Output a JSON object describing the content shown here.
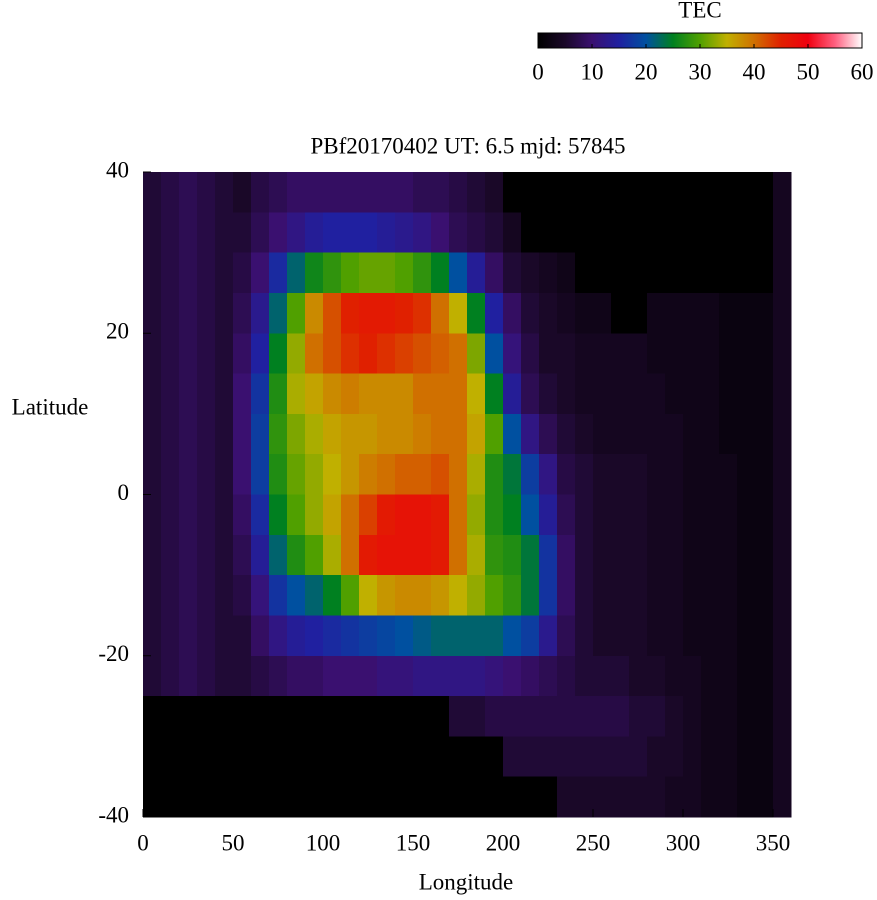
{
  "chart_data": {
    "type": "heatmap",
    "title": "PBf20170402  UT: 6.5  mjd: 57845",
    "x_label": "Longitude",
    "y_label": "Latitude",
    "colorbar_label": "TEC",
    "x": [
      5,
      15,
      25,
      35,
      45,
      55,
      65,
      75,
      85,
      95,
      105,
      115,
      125,
      135,
      145,
      155,
      165,
      175,
      185,
      195,
      205,
      215,
      225,
      235,
      245,
      255,
      265,
      275,
      285,
      295,
      305,
      315,
      325,
      335,
      345,
      355
    ],
    "y": [
      37.5,
      32.5,
      27.5,
      22.5,
      17.5,
      12.5,
      7.5,
      2.5,
      -2.5,
      -7.5,
      -12.5,
      -17.5,
      -22.5,
      -27.5,
      -32.5,
      -37.5
    ],
    "values": [
      [
        6,
        7,
        8,
        7,
        6,
        5,
        7,
        8,
        9,
        9,
        9,
        9,
        9,
        9,
        9,
        8,
        8,
        7,
        6,
        5,
        0,
        0,
        0,
        0,
        0,
        0,
        0,
        0,
        0,
        0,
        0,
        0,
        0,
        0,
        0,
        4
      ],
      [
        6,
        7,
        8,
        7,
        6,
        6,
        8,
        10,
        12,
        14,
        15,
        15,
        15,
        14,
        13,
        12,
        10,
        8,
        7,
        6,
        4,
        0,
        0,
        0,
        0,
        0,
        0,
        0,
        0,
        0,
        0,
        0,
        0,
        0,
        0,
        4
      ],
      [
        6,
        7,
        8,
        7,
        6,
        7,
        10,
        16,
        22,
        26,
        28,
        30,
        31,
        31,
        30,
        28,
        25,
        20,
        14,
        9,
        6,
        5,
        4,
        3,
        0,
        0,
        0,
        0,
        0,
        0,
        0,
        0,
        0,
        0,
        0,
        4
      ],
      [
        6,
        7,
        8,
        7,
        6,
        8,
        13,
        22,
        30,
        38,
        42,
        45,
        46,
        46,
        45,
        44,
        40,
        35,
        25,
        15,
        9,
        6,
        5,
        4,
        3,
        3,
        0,
        0,
        3,
        3,
        3,
        3,
        2,
        2,
        2,
        4
      ],
      [
        6,
        7,
        8,
        7,
        6,
        9,
        15,
        25,
        33,
        40,
        42,
        44,
        45,
        44,
        43,
        42,
        41,
        40,
        32,
        20,
        11,
        7,
        5,
        5,
        4,
        4,
        4,
        4,
        3,
        3,
        3,
        3,
        2,
        2,
        2,
        4
      ],
      [
        6,
        7,
        8,
        7,
        6,
        10,
        17,
        27,
        34,
        36,
        38,
        39,
        38,
        38,
        38,
        40,
        40,
        40,
        35,
        25,
        14,
        8,
        6,
        5,
        4,
        4,
        4,
        4,
        4,
        3,
        3,
        3,
        2,
        2,
        2,
        4
      ],
      [
        6,
        7,
        8,
        7,
        6,
        10,
        18,
        28,
        32,
        34,
        36,
        37,
        37,
        38,
        38,
        39,
        40,
        40,
        36,
        30,
        20,
        12,
        8,
        6,
        5,
        4,
        4,
        4,
        4,
        4,
        3,
        3,
        2,
        2,
        2,
        4
      ],
      [
        6,
        7,
        8,
        7,
        6,
        10,
        18,
        27,
        31,
        33,
        35,
        37,
        39,
        40,
        41,
        41,
        42,
        40,
        34,
        27,
        24,
        18,
        12,
        7,
        6,
        5,
        5,
        5,
        4,
        4,
        3,
        3,
        3,
        2,
        2,
        4
      ],
      [
        6,
        7,
        8,
        7,
        6,
        9,
        16,
        25,
        30,
        33,
        36,
        40,
        43,
        46,
        47,
        47,
        46,
        40,
        33,
        27,
        25,
        20,
        14,
        8,
        6,
        5,
        5,
        5,
        4,
        4,
        3,
        3,
        3,
        2,
        2,
        4
      ],
      [
        6,
        7,
        8,
        7,
        6,
        8,
        14,
        22,
        27,
        30,
        34,
        40,
        46,
        47,
        47,
        47,
        46,
        40,
        34,
        28,
        27,
        24,
        17,
        9,
        6,
        5,
        5,
        5,
        4,
        4,
        3,
        3,
        3,
        2,
        2,
        4
      ],
      [
        6,
        7,
        8,
        7,
        6,
        7,
        11,
        17,
        20,
        22,
        25,
        30,
        35,
        37,
        38,
        38,
        37,
        35,
        33,
        30,
        28,
        24,
        17,
        9,
        6,
        5,
        5,
        5,
        4,
        4,
        3,
        3,
        3,
        2,
        2,
        4
      ],
      [
        6,
        7,
        8,
        7,
        6,
        6,
        9,
        12,
        14,
        15,
        16,
        17,
        18,
        19,
        20,
        21,
        22,
        22,
        22,
        22,
        20,
        18,
        13,
        8,
        6,
        5,
        5,
        5,
        4,
        4,
        3,
        3,
        3,
        2,
        2,
        4
      ],
      [
        6,
        7,
        8,
        7,
        6,
        6,
        7,
        8,
        9,
        9,
        10,
        10,
        10,
        11,
        11,
        12,
        12,
        12,
        12,
        11,
        10,
        9,
        8,
        7,
        6,
        6,
        6,
        5,
        5,
        4,
        4,
        3,
        3,
        2,
        2,
        4
      ],
      [
        0,
        0,
        0,
        0,
        0,
        0,
        0,
        0,
        0,
        0,
        0,
        0,
        0,
        0,
        0,
        0,
        0,
        6,
        6,
        7,
        7,
        7,
        7,
        7,
        7,
        7,
        7,
        6,
        6,
        5,
        4,
        3,
        3,
        2,
        2,
        4
      ],
      [
        0,
        0,
        0,
        0,
        0,
        0,
        0,
        0,
        0,
        0,
        0,
        0,
        0,
        0,
        0,
        0,
        0,
        0,
        0,
        0,
        6,
        6,
        6,
        6,
        6,
        6,
        6,
        6,
        5,
        5,
        4,
        3,
        3,
        2,
        2,
        4
      ],
      [
        0,
        0,
        0,
        0,
        0,
        0,
        0,
        0,
        0,
        0,
        0,
        0,
        0,
        0,
        0,
        0,
        0,
        0,
        0,
        0,
        0,
        0,
        0,
        5,
        5,
        5,
        5,
        5,
        5,
        4,
        4,
        3,
        3,
        2,
        2,
        4
      ]
    ],
    "xlim": [
      0,
      360
    ],
    "xticks": [
      0,
      50,
      100,
      150,
      200,
      250,
      300,
      350
    ],
    "ylim": [
      -40,
      40
    ],
    "yticks": [
      -40,
      -20,
      0,
      20,
      40
    ],
    "zlim": [
      0,
      60
    ],
    "zticks": [
      0,
      10,
      20,
      30,
      40,
      50,
      60
    ],
    "colorscale": [
      "#000000",
      "#1a0828",
      "#3a1070",
      "#2020a0",
      "#0050a0",
      "#008020",
      "#50a000",
      "#c0b000",
      "#d07000",
      "#e02000",
      "#f00010",
      "#ff6080",
      "#ffffff"
    ]
  }
}
